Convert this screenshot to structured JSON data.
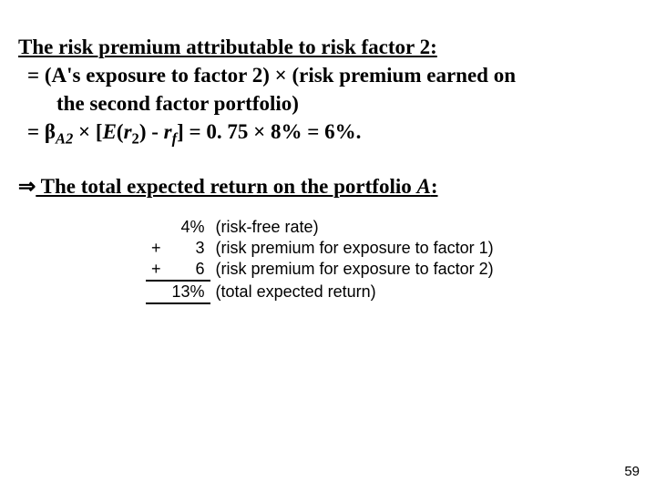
{
  "heading1": "The risk premium attributable to risk factor 2:",
  "line1a": "= (A's exposure to factor 2) ",
  "times": "×",
  "line1b": " (risk premium earned on",
  "line2": "the second factor portfolio)",
  "eq_prefix": "= ",
  "beta": "β",
  "beta_sub": "A2",
  "eq_mid1": " [",
  "E": "E",
  "eq_mid2": "(",
  "r1": "r",
  "r1_sub": "2",
  "eq_mid3": ") - ",
  "r2": "r",
  "r2_sub": "f",
  "eq_mid4": "] = 0. 75 ",
  "eq_mid5": " 8% = 6%.",
  "implies": "⇒",
  "heading2a": " The total expected return on the portfolio ",
  "heading2b": "A",
  "heading2c": ":",
  "calc": {
    "rows": [
      {
        "sign": "",
        "num": "4%",
        "desc": "(risk-free rate)"
      },
      {
        "sign": "+",
        "num": "3",
        "desc": "(risk premium for exposure to factor 1)"
      },
      {
        "sign": "+",
        "num": "6",
        "desc": "(risk premium for exposure to factor 2)"
      },
      {
        "sign": "",
        "num": "13%",
        "desc": "(total expected return)"
      }
    ]
  },
  "page_number": "59"
}
